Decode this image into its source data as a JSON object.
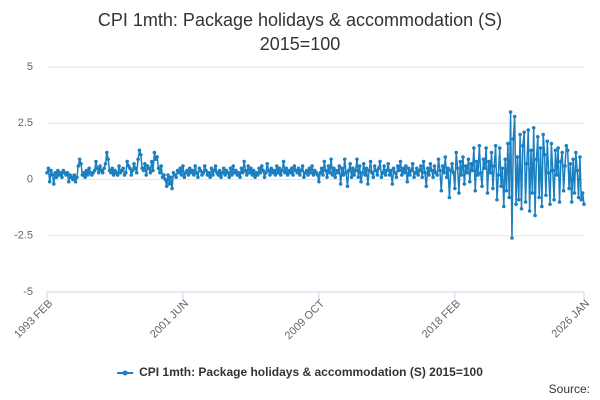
{
  "chart_data": {
    "type": "line",
    "title": "CPI 1mth: Package holidays & accommodation (S) 2015=100",
    "source": "Source:",
    "categories": [
      "1993 FEB",
      null,
      null,
      null,
      null,
      null,
      null,
      null,
      null,
      null,
      null,
      null,
      null,
      null,
      null,
      null,
      null,
      null,
      null,
      null,
      null,
      null,
      null,
      null,
      null,
      null,
      null,
      null,
      null,
      null,
      null,
      null,
      null,
      null,
      null,
      null,
      null,
      null,
      null,
      null,
      null,
      null,
      null,
      null,
      null,
      null,
      null,
      null,
      null,
      null,
      null,
      null,
      null,
      null,
      null,
      null,
      null,
      null,
      null,
      null,
      null,
      null,
      null,
      null,
      null,
      null,
      null,
      null,
      null,
      null,
      null,
      null,
      null,
      null,
      null,
      null,
      null,
      null,
      null,
      null,
      null,
      null,
      null,
      null,
      null,
      null,
      null,
      null,
      null,
      null,
      null,
      null,
      null,
      null,
      null,
      null,
      null,
      null,
      null,
      null,
      "2001 JUN",
      null,
      null,
      null,
      null,
      null,
      null,
      null,
      null,
      null,
      null,
      null,
      null,
      null,
      null,
      null,
      null,
      null,
      null,
      null,
      null,
      null,
      null,
      null,
      null,
      null,
      null,
      null,
      null,
      null,
      null,
      null,
      null,
      null,
      null,
      null,
      null,
      null,
      null,
      null,
      null,
      null,
      null,
      null,
      null,
      null,
      null,
      null,
      null,
      null,
      null,
      null,
      null,
      null,
      null,
      null,
      null,
      null,
      null,
      null,
      null,
      null,
      null,
      null,
      null,
      null,
      null,
      null,
      null,
      null,
      null,
      null,
      null,
      null,
      null,
      null,
      null,
      null,
      null,
      null,
      null,
      null,
      null,
      null,
      null,
      null,
      null,
      null,
      null,
      null,
      null,
      null,
      null,
      null,
      null,
      null,
      null,
      null,
      null,
      null,
      "2009 OCT",
      null,
      null,
      null,
      null,
      null,
      null,
      null,
      null,
      null,
      null,
      null,
      null,
      null,
      null,
      null,
      null,
      null,
      null,
      null,
      null,
      null,
      null,
      null,
      null,
      null,
      null,
      null,
      null,
      null,
      null,
      null,
      null,
      null,
      null,
      null,
      null,
      null,
      null,
      null,
      null,
      null,
      null,
      null,
      null,
      null,
      null,
      null,
      null,
      null,
      null,
      null,
      null,
      null,
      null,
      null,
      null,
      null,
      null,
      null,
      null,
      null,
      null,
      null,
      null,
      null,
      null,
      null,
      null,
      null,
      null,
      null,
      null,
      null,
      null,
      null,
      null,
      null,
      null,
      null,
      null,
      null,
      null,
      null,
      null,
      null,
      null,
      null,
      null,
      null,
      null,
      null,
      null,
      null,
      null,
      null,
      null,
      null,
      null,
      null,
      "2018 FEB",
      null,
      null,
      null,
      null,
      null,
      null,
      null,
      null,
      null,
      null,
      null,
      null,
      null,
      null,
      null,
      null,
      null,
      null,
      null,
      null,
      null,
      null,
      null,
      null,
      null,
      null,
      null,
      null,
      null,
      null,
      null,
      null,
      null,
      null,
      null,
      null,
      null,
      null,
      null,
      null,
      null,
      null,
      null,
      null,
      null,
      null,
      null,
      null,
      null,
      null,
      null,
      null,
      null,
      null,
      null,
      null,
      null,
      null,
      null,
      null,
      null,
      null,
      null,
      null,
      null,
      null,
      null,
      null,
      null,
      null,
      null,
      null,
      null,
      null,
      null,
      null,
      null,
      null,
      null,
      null,
      null,
      null,
      null,
      null,
      null,
      null,
      null,
      null,
      null,
      null,
      null,
      null,
      null,
      null,
      "2026 JAN"
    ],
    "series": [
      {
        "name": "CPI 1mth: Package holidays & accommodation (S) 2015=100",
        "color": "#1b7fc0",
        "values": [
          0.3,
          0.5,
          -0.1,
          0.4,
          0.2,
          -0.2,
          0.3,
          0.1,
          0.4,
          0.2,
          0.3,
          0.1,
          0.4,
          0.3,
          0.2,
          0.3,
          -0.1,
          0.2,
          0.1,
          0,
          0.2,
          -0.1,
          0.1,
          0.6,
          0.9,
          0.7,
          0.2,
          0.3,
          0.1,
          0.4,
          0.2,
          0.5,
          0.3,
          0.2,
          0.3,
          0.4,
          0.8,
          0.5,
          0.3,
          0.6,
          0.4,
          0.3,
          0.5,
          0.7,
          1.2,
          0.9,
          0.4,
          0.3,
          0.5,
          0.2,
          0.4,
          0.3,
          0.2,
          0.6,
          0.3,
          0.4,
          0.5,
          0.2,
          0.3,
          0.8,
          0.6,
          0.5,
          0.2,
          0.4,
          0.7,
          0.5,
          0.3,
          0.9,
          1.3,
          1.1,
          0.5,
          0.4,
          0.7,
          0.2,
          0.6,
          0.5,
          0.3,
          0.8,
          0.4,
          1.2,
          0.9,
          1.0,
          0.5,
          0.3,
          0.6,
          0.1,
          0.2,
          0,
          -0.3,
          0.2,
          -0.2,
          0.1,
          -0.4,
          0.3,
          0.2,
          0.1,
          0.4,
          0.3,
          0.5,
          0.2,
          0.6,
          0.1,
          0.3,
          0.4,
          0.2,
          0.5,
          0.3,
          0.4,
          0.2,
          0.6,
          0.3,
          0.1,
          0.5,
          0.4,
          0.2,
          0.3,
          0.6,
          0.4,
          0.2,
          0.3,
          0.1,
          0.5,
          0.2,
          0.4,
          0.6,
          0.3,
          0.2,
          0.4,
          0.1,
          0.3,
          0.5,
          0.2,
          0.4,
          0.3,
          0.1,
          0.5,
          0.2,
          0.6,
          0.3,
          0.4,
          0.2,
          0.3,
          0.1,
          0.5,
          0.3,
          0.8,
          0.4,
          0.2,
          0.6,
          0.3,
          0.5,
          0.2,
          0.4,
          0.1,
          0.3,
          0.2,
          0.5,
          0.3,
          0.6,
          0.4,
          0.1,
          0.3,
          0.7,
          0.4,
          0.2,
          0.5,
          0.3,
          0.4,
          0.2,
          0.6,
          0.3,
          0.5,
          0.2,
          0.4,
          0.8,
          0.3,
          0.5,
          0.2,
          0.4,
          0.3,
          0.5,
          0.2,
          0.6,
          0.4,
          0.3,
          0.5,
          0.2,
          0.4,
          0.6,
          0.1,
          0.3,
          0.4,
          0.2,
          0.5,
          0.3,
          0.6,
          0.2,
          0.4,
          0.3,
          0.2,
          -0.1,
          0.3,
          0.5,
          0.2,
          0.8,
          0.4,
          0.1,
          0.6,
          0.3,
          0.9,
          0.2,
          0.5,
          0.1,
          0.4,
          0.3,
          0.6,
          -0.2,
          0.5,
          0.2,
          0.9,
          0.3,
          -0.3,
          0.4,
          0.7,
          0.1,
          0.5,
          0.2,
          0.4,
          0.9,
          0.1,
          0.6,
          -0.1,
          0.3,
          0.7,
          0.2,
          0.5,
          -0.2,
          0.4,
          0.8,
          0.3,
          0.1,
          0.6,
          0.4,
          0.2,
          0.5,
          0.8,
          0.1,
          0.3,
          0.6,
          0.2,
          0.4,
          0.7,
          0.2,
          0.4,
          -0.2,
          0.5,
          0.3,
          0.1,
          0.6,
          0.4,
          0.8,
          0.2,
          0.5,
          0.3,
          0.6,
          -0.1,
          0.5,
          0.2,
          0.4,
          0.7,
          0.1,
          0.3,
          0.5,
          0.2,
          0.4,
          0.6,
          0.1,
          0.8,
          0.3,
          -0.3,
          0.5,
          0.2,
          0.7,
          0.4,
          0.1,
          0.6,
          0.3,
          0.2,
          0.9,
          0.4,
          -0.5,
          0.6,
          0.3,
          1.0,
          0.1,
          0.5,
          -0.8,
          0.4,
          0.7,
          0.3,
          -0.4,
          1.2,
          0.5,
          -0.6,
          0.8,
          0.2,
          1.0,
          -0.2,
          0.6,
          0.3,
          0.9,
          -0.1,
          0.7,
          0.4,
          1.4,
          -0.5,
          0.8,
          0.2,
          1.5,
          0.3,
          -0.3,
          0.9,
          0.5,
          1.4,
          -0.6,
          0.8,
          0.3,
          1.2,
          -0.4,
          0.6,
          1.5,
          -0.9,
          0.2,
          1.4,
          -0.3,
          0.5,
          -1.2,
          0.9,
          -0.5,
          1.6,
          -0.8,
          3.0,
          -2.6,
          1.8,
          2.8,
          -1.1,
          1.0,
          -0.9,
          2.0,
          -1.3,
          1.5,
          2.1,
          -1.0,
          0.7,
          2.2,
          -1.4,
          1.3,
          -0.6,
          2.3,
          -1.6,
          0.9,
          1.9,
          -0.8,
          1.4,
          -1.2,
          2.0,
          1.1,
          -0.7,
          1.7,
          0.3,
          -1.1,
          1.6,
          0.4,
          -0.9,
          1.3,
          0.2,
          1.4,
          -1.0,
          0.8,
          1.2,
          -0.5,
          0.6,
          1.5,
          1.3,
          -0.4,
          0.7,
          -1.0,
          0.9,
          -0.6,
          1.2,
          0.4,
          -0.8,
          1.0,
          -0.9,
          -0.6,
          -1.1
        ]
      }
    ],
    "ylim": [
      -5,
      5
    ],
    "yticks": [
      -5,
      -2.5,
      0,
      2.5,
      5
    ],
    "grid": true
  }
}
